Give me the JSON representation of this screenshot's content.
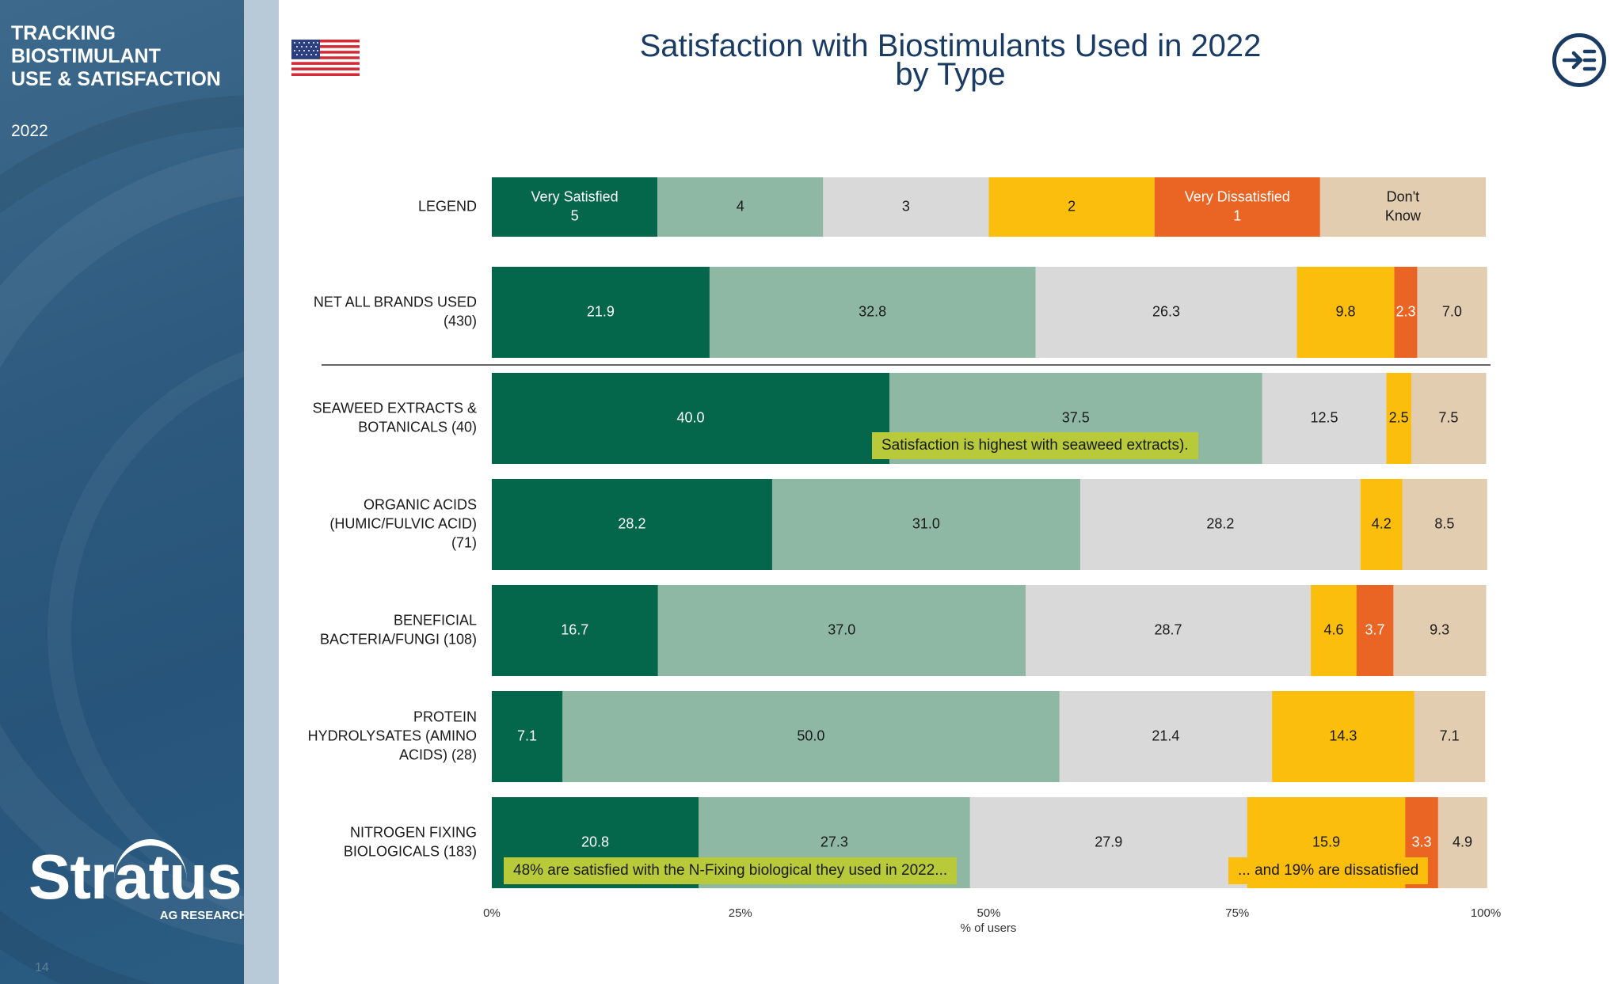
{
  "sidebar": {
    "title": "TRACKING\nBIOSTIMULANT\nUSE & SATISFACTION",
    "year": "2022",
    "page_number": "14",
    "logo_name": "Stratus",
    "logo_sub": "AG RESEARCH"
  },
  "header": {
    "title_line1": "Satisfaction with Biostimulants Used in 2022",
    "title_line2": "by Type",
    "flag_icon": "us-flag-icon",
    "exit_icon": "exit-arrow-icon"
  },
  "callouts": {
    "seaweed": "Satisfaction is highest with seaweed extracts).",
    "nfix_satisfied": "48% are satisfied with the N-Fixing biological they used in 2022...",
    "nfix_dissatisfied": "... and 19% are dissatisfied"
  },
  "chart_data": {
    "type": "bar",
    "orientation": "horizontal-stacked-100",
    "xlabel": "% of users",
    "xlim": [
      0,
      100
    ],
    "xticks": [
      "0%",
      "25%",
      "50%",
      "75%",
      "100%"
    ],
    "legend": {
      "label": "LEGEND",
      "entries": [
        {
          "text": [
            "Very Satisfied",
            "5"
          ],
          "color": "#04664a",
          "text_color": "#ffffff"
        },
        {
          "text": [
            "4"
          ],
          "color": "#8fb8a4",
          "text_color": "#1a1a1a"
        },
        {
          "text": [
            "3"
          ],
          "color": "#d9d9d9",
          "text_color": "#1a1a1a"
        },
        {
          "text": [
            "2"
          ],
          "color": "#fbbe0c",
          "text_color": "#1a1a1a"
        },
        {
          "text": [
            "Very Dissatisfied",
            "1"
          ],
          "color": "#ea6423",
          "text_color": "#ffffff"
        },
        {
          "text": [
            "Don't",
            "Know"
          ],
          "color": "#e2cdb0",
          "text_color": "#1a1a1a"
        }
      ]
    },
    "colors": [
      "#04664a",
      "#8fb8a4",
      "#d9d9d9",
      "#fbbe0c",
      "#ea6423",
      "#e2cdb0"
    ],
    "text_colors": [
      "#ffffff",
      "#1a1a1a",
      "#1a1a1a",
      "#1a1a1a",
      "#ffffff",
      "#1a1a1a"
    ],
    "categories": [
      [
        "NET ALL BRANDS USED",
        "(430)"
      ],
      [
        "SEAWEED EXTRACTS &",
        "BOTANICALS (40)"
      ],
      [
        "ORGANIC ACIDS",
        "(HUMIC/FULVIC ACID)",
        "(71)"
      ],
      [
        "BENEFICIAL",
        "BACTERIA/FUNGI (108)"
      ],
      [
        "PROTEIN",
        "HYDROLYSATES (AMINO",
        "ACIDS) (28)"
      ],
      [
        "NITROGEN FIXING",
        "BIOLOGICALS (183)"
      ]
    ],
    "rows": [
      {
        "values": [
          21.9,
          32.8,
          26.3,
          9.8,
          2.3,
          7.0
        ],
        "labels": [
          "21.9",
          "32.8",
          "26.3",
          "9.8",
          "2.3",
          "7.0"
        ]
      },
      {
        "values": [
          40.0,
          37.5,
          12.5,
          2.5,
          0,
          7.5
        ],
        "labels": [
          "40.0",
          "37.5",
          "12.5",
          "2.5",
          "",
          "7.5"
        ]
      },
      {
        "values": [
          28.2,
          31.0,
          28.2,
          4.2,
          0,
          8.5
        ],
        "labels": [
          "28.2",
          "31.0",
          "28.2",
          "4.2",
          "",
          "8.5"
        ]
      },
      {
        "values": [
          16.7,
          37.0,
          28.7,
          4.6,
          3.7,
          9.3
        ],
        "labels": [
          "16.7",
          "37.0",
          "28.7",
          "4.6",
          "3.7",
          "9.3"
        ]
      },
      {
        "values": [
          7.1,
          50.0,
          21.4,
          14.3,
          0,
          7.1
        ],
        "labels": [
          "7.1",
          "50.0",
          "21.4",
          "14.3",
          "",
          "7.1"
        ]
      },
      {
        "values": [
          20.8,
          27.3,
          27.9,
          15.9,
          3.3,
          4.9
        ],
        "labels": [
          "20.8",
          "27.3",
          "27.9",
          "15.9",
          "3.3",
          "4.9"
        ]
      }
    ],
    "grid": false
  }
}
